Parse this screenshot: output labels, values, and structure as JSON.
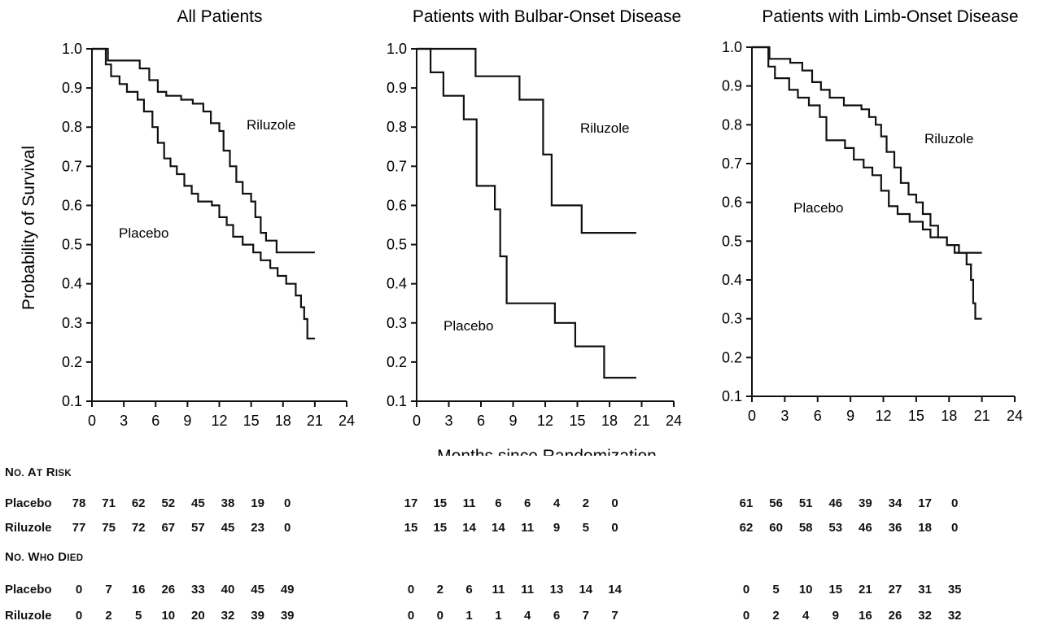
{
  "chart_data": [
    {
      "type": "line",
      "title": "All Patients",
      "xlabel": "Months since Randomization",
      "ylabel": "Probability of Survival",
      "xlim": [
        0,
        24
      ],
      "ylim": [
        0.1,
        1.0
      ],
      "xticks": [
        "0",
        "3",
        "6",
        "9",
        "12",
        "15",
        "18",
        "21",
        "24"
      ],
      "yticks": [
        "0.1",
        "0.2",
        "0.3",
        "0.4",
        "0.5",
        "0.6",
        "0.7",
        "0.8",
        "0.9",
        "1.0"
      ],
      "grid": false,
      "series": [
        {
          "name": "Riluzole",
          "steps": [
            [
              0,
              1.0
            ],
            [
              1.5,
              0.97
            ],
            [
              4.5,
              0.95
            ],
            [
              5.4,
              0.92
            ],
            [
              6.2,
              0.89
            ],
            [
              7,
              0.88
            ],
            [
              8.4,
              0.87
            ],
            [
              9.5,
              0.86
            ],
            [
              10.5,
              0.84
            ],
            [
              11.2,
              0.81
            ],
            [
              12,
              0.79
            ],
            [
              12.4,
              0.74
            ],
            [
              13,
              0.7
            ],
            [
              13.6,
              0.66
            ],
            [
              14.2,
              0.63
            ],
            [
              15,
              0.61
            ],
            [
              15.4,
              0.57
            ],
            [
              15.9,
              0.53
            ],
            [
              16.4,
              0.51
            ],
            [
              17.4,
              0.48
            ],
            [
              21,
              0.48
            ]
          ]
        },
        {
          "name": "Placebo",
          "steps": [
            [
              0,
              1.0
            ],
            [
              1.3,
              0.96
            ],
            [
              1.8,
              0.93
            ],
            [
              2.6,
              0.91
            ],
            [
              3.3,
              0.89
            ],
            [
              4.3,
              0.87
            ],
            [
              4.9,
              0.84
            ],
            [
              5.7,
              0.8
            ],
            [
              6.2,
              0.76
            ],
            [
              6.8,
              0.72
            ],
            [
              7.4,
              0.7
            ],
            [
              8,
              0.68
            ],
            [
              8.7,
              0.65
            ],
            [
              9.4,
              0.63
            ],
            [
              10,
              0.61
            ],
            [
              11.3,
              0.6
            ],
            [
              12,
              0.57
            ],
            [
              12.7,
              0.55
            ],
            [
              13.3,
              0.52
            ],
            [
              14.2,
              0.5
            ],
            [
              15.2,
              0.48
            ],
            [
              15.9,
              0.46
            ],
            [
              16.8,
              0.44
            ],
            [
              17.5,
              0.42
            ],
            [
              18.3,
              0.4
            ],
            [
              19.2,
              0.37
            ],
            [
              19.7,
              0.34
            ],
            [
              20,
              0.31
            ],
            [
              20.3,
              0.26
            ],
            [
              21,
              0.26
            ]
          ]
        }
      ]
    },
    {
      "type": "line",
      "title": "Patients with Bulbar-Onset Disease",
      "xlim": [
        0,
        24
      ],
      "ylim": [
        0.1,
        1.0
      ],
      "xticks": [
        "0",
        "3",
        "6",
        "9",
        "12",
        "15",
        "18",
        "21",
        "24"
      ],
      "yticks": [
        "0.1",
        "0.2",
        "0.3",
        "0.4",
        "0.5",
        "0.6",
        "0.7",
        "0.8",
        "0.9",
        "1.0"
      ],
      "grid": false,
      "series": [
        {
          "name": "Riluzole",
          "steps": [
            [
              0,
              1.0
            ],
            [
              5.5,
              0.93
            ],
            [
              9.6,
              0.87
            ],
            [
              11.8,
              0.73
            ],
            [
              12.6,
              0.6
            ],
            [
              15.4,
              0.53
            ],
            [
              20.5,
              0.53
            ]
          ]
        },
        {
          "name": "Placebo",
          "steps": [
            [
              0,
              1.0
            ],
            [
              1.3,
              0.94
            ],
            [
              2.5,
              0.88
            ],
            [
              4.4,
              0.82
            ],
            [
              5.6,
              0.65
            ],
            [
              7.3,
              0.59
            ],
            [
              7.8,
              0.47
            ],
            [
              8.4,
              0.35
            ],
            [
              12.9,
              0.3
            ],
            [
              14.8,
              0.24
            ],
            [
              17.5,
              0.16
            ],
            [
              20.5,
              0.16
            ]
          ]
        }
      ]
    },
    {
      "type": "line",
      "title": "Patients with Limb-Onset Disease",
      "xlim": [
        0,
        24
      ],
      "ylim": [
        0.1,
        1.0
      ],
      "xticks": [
        "0",
        "3",
        "6",
        "9",
        "12",
        "15",
        "18",
        "21",
        "24"
      ],
      "yticks": [
        "0.1",
        "0.2",
        "0.3",
        "0.4",
        "0.5",
        "0.6",
        "0.7",
        "0.8",
        "0.9",
        "1.0"
      ],
      "grid": false,
      "series": [
        {
          "name": "Riluzole",
          "steps": [
            [
              0,
              1.0
            ],
            [
              1.6,
              0.97
            ],
            [
              3.5,
              0.96
            ],
            [
              4.6,
              0.94
            ],
            [
              5.5,
              0.91
            ],
            [
              6.3,
              0.89
            ],
            [
              7.1,
              0.87
            ],
            [
              8.4,
              0.85
            ],
            [
              10,
              0.84
            ],
            [
              10.7,
              0.82
            ],
            [
              11.3,
              0.8
            ],
            [
              11.8,
              0.77
            ],
            [
              12.3,
              0.73
            ],
            [
              13,
              0.69
            ],
            [
              13.6,
              0.65
            ],
            [
              14.3,
              0.62
            ],
            [
              15,
              0.6
            ],
            [
              15.6,
              0.57
            ],
            [
              16.3,
              0.54
            ],
            [
              17,
              0.51
            ],
            [
              17.8,
              0.49
            ],
            [
              18.5,
              0.47
            ],
            [
              21,
              0.47
            ]
          ]
        },
        {
          "name": "Placebo",
          "steps": [
            [
              0,
              1.0
            ],
            [
              1.5,
              0.95
            ],
            [
              2.1,
              0.92
            ],
            [
              3.4,
              0.89
            ],
            [
              4.2,
              0.87
            ],
            [
              5.2,
              0.85
            ],
            [
              6.2,
              0.82
            ],
            [
              6.8,
              0.76
            ],
            [
              8.5,
              0.74
            ],
            [
              9.3,
              0.71
            ],
            [
              10.2,
              0.69
            ],
            [
              11,
              0.67
            ],
            [
              11.8,
              0.63
            ],
            [
              12.5,
              0.59
            ],
            [
              13.3,
              0.57
            ],
            [
              14.4,
              0.55
            ],
            [
              15.6,
              0.53
            ],
            [
              16.3,
              0.51
            ],
            [
              17.8,
              0.49
            ],
            [
              18.9,
              0.47
            ],
            [
              19.6,
              0.44
            ],
            [
              20,
              0.4
            ],
            [
              20.2,
              0.34
            ],
            [
              20.4,
              0.3
            ],
            [
              21,
              0.3
            ]
          ]
        }
      ]
    }
  ],
  "labels": {
    "panel1_riluzole": "Riluzole",
    "panel1_placebo": "Placebo",
    "panel2_riluzole": "Riluzole",
    "panel2_placebo": "Placebo",
    "panel3_riluzole": "Riluzole",
    "panel3_placebo": "Placebo"
  },
  "risk_table": {
    "at_risk_heading": "No. at Risk",
    "died_heading": "No. Who Died",
    "rows": [
      {
        "label": "Placebo",
        "all": [
          "78",
          "71",
          "62",
          "52",
          "45",
          "38",
          "19",
          "0"
        ],
        "bulbar": [
          "17",
          "15",
          "11",
          "6",
          "6",
          "4",
          "2",
          "0"
        ],
        "limb": [
          "61",
          "56",
          "51",
          "46",
          "39",
          "34",
          "17",
          "0"
        ]
      },
      {
        "label": "Riluzole",
        "all": [
          "77",
          "75",
          "72",
          "67",
          "57",
          "45",
          "23",
          "0"
        ],
        "bulbar": [
          "15",
          "15",
          "14",
          "14",
          "11",
          "9",
          "5",
          "0"
        ],
        "limb": [
          "62",
          "60",
          "58",
          "53",
          "46",
          "36",
          "18",
          "0"
        ]
      },
      {
        "label": "Placebo",
        "all": [
          "0",
          "7",
          "16",
          "26",
          "33",
          "40",
          "45",
          "49"
        ],
        "bulbar": [
          "0",
          "2",
          "6",
          "11",
          "11",
          "13",
          "14",
          "14"
        ],
        "limb": [
          "0",
          "5",
          "10",
          "15",
          "21",
          "27",
          "31",
          "35"
        ]
      },
      {
        "label": "Riluzole",
        "all": [
          "0",
          "2",
          "5",
          "10",
          "20",
          "32",
          "39",
          "39"
        ],
        "bulbar": [
          "0",
          "0",
          "1",
          "1",
          "4",
          "6",
          "7",
          "7"
        ],
        "limb": [
          "0",
          "2",
          "4",
          "9",
          "16",
          "26",
          "32",
          "32"
        ]
      }
    ]
  }
}
